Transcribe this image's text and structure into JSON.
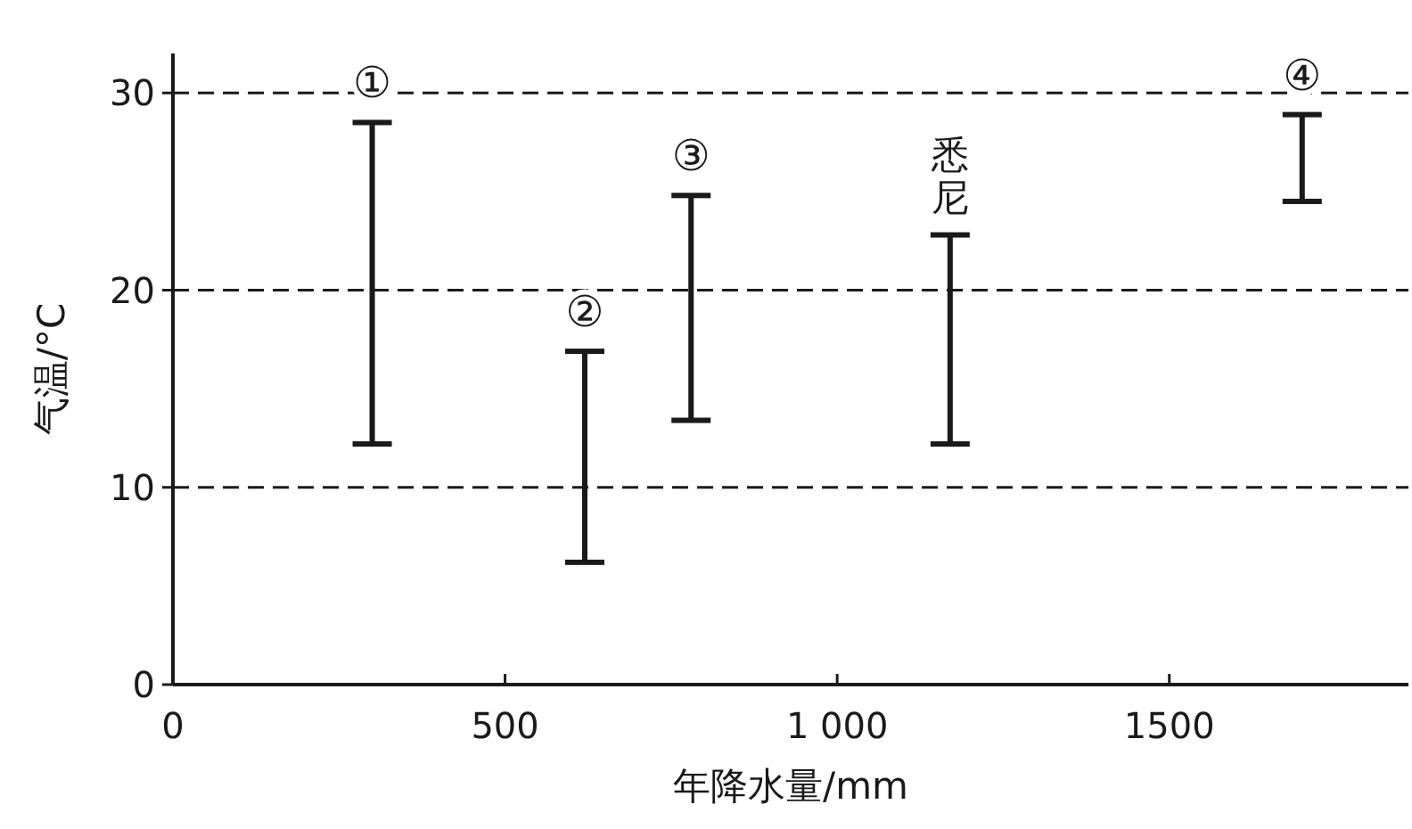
{
  "chart_data": {
    "type": "bar",
    "xlabel": "年降水量/mm",
    "ylabel": "气温/°C",
    "x": [
      300,
      620,
      780,
      1170,
      1700
    ],
    "base": [
      12.2,
      6.2,
      13.4,
      12.2,
      24.5
    ],
    "values": [
      16.3,
      10.7,
      11.4,
      10.6,
      4.4
    ],
    "color": "#1a1a1a",
    "xlim": [
      0,
      1860
    ],
    "ylim": [
      0,
      32
    ],
    "xticks": [
      0,
      500,
      {
        "value": 1000,
        "label": "1 000"
      },
      1500
    ],
    "yticks": [
      0,
      10,
      20,
      30
    ],
    "grid": "y",
    "annotations": [
      "①",
      "②",
      "③",
      "悉尼",
      "④"
    ]
  }
}
